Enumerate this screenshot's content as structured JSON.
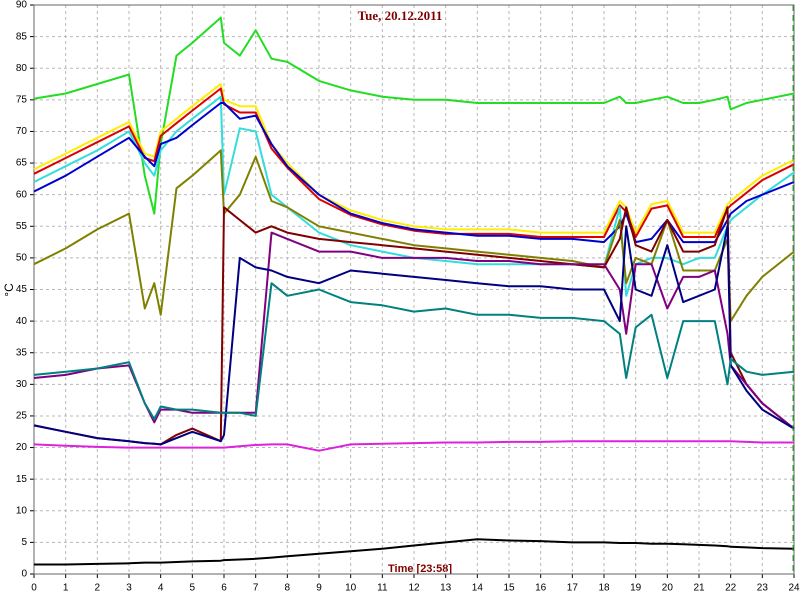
{
  "chart_data": {
    "type": "line",
    "title": "Tue, 20.12.2011",
    "x_label": "Time [23:58]",
    "y_label": "°C",
    "xlim": [
      0,
      24
    ],
    "ylim": [
      0,
      90
    ],
    "xticks": [
      0,
      1,
      2,
      3,
      4,
      5,
      6,
      7,
      8,
      9,
      10,
      11,
      12,
      13,
      14,
      15,
      16,
      17,
      18,
      19,
      20,
      21,
      22,
      23,
      24
    ],
    "yticks": [
      0,
      5,
      10,
      15,
      20,
      25,
      30,
      35,
      40,
      45,
      50,
      55,
      60,
      65,
      70,
      75,
      80,
      85,
      90
    ],
    "grid": true,
    "x": [
      0,
      1,
      2,
      3,
      3.5,
      3.8,
      4,
      4.5,
      5,
      5.9,
      6,
      6.5,
      7,
      7.5,
      8,
      9,
      10,
      11,
      12,
      13,
      14,
      15,
      16,
      17,
      18,
      18.5,
      18.7,
      19,
      19.5,
      20,
      20.5,
      21,
      21.5,
      21.9,
      22,
      22.5,
      23,
      24
    ],
    "series": [
      {
        "color": "#22dd22",
        "values": [
          75.2,
          76,
          77.5,
          79,
          63,
          57,
          68,
          82,
          84,
          88,
          84,
          82,
          86,
          81.5,
          81,
          78,
          76.5,
          75.5,
          75,
          75,
          74.5,
          74.5,
          74.5,
          74.5,
          74.5,
          75.5,
          74.5,
          74.5,
          75,
          75.5,
          74.5,
          74.5,
          75,
          75.5,
          73.5,
          74.5,
          75,
          76
        ]
      },
      {
        "color": "#ffee00",
        "values": [
          64,
          66.5,
          69,
          71.5,
          66.5,
          66,
          70,
          72,
          74,
          77.5,
          75,
          74,
          74,
          68,
          65,
          60,
          57.5,
          56,
          55,
          54.5,
          54.5,
          54.5,
          54,
          54,
          54,
          59,
          58,
          54,
          58.5,
          59,
          54,
          54,
          54,
          58.5,
          59,
          61,
          63,
          65.5
        ]
      },
      {
        "color": "#dd0000",
        "values": [
          63.3,
          65.8,
          68.3,
          70.8,
          65.8,
          65.3,
          69.3,
          71.3,
          73.3,
          76.8,
          74.3,
          73,
          73,
          67.3,
          64.3,
          59.3,
          56.8,
          55.3,
          54.3,
          53.8,
          53.8,
          53.8,
          53.3,
          53.3,
          53.3,
          58.3,
          57.3,
          53.3,
          57.8,
          58.3,
          53.3,
          53.3,
          53.3,
          57.8,
          58.3,
          60.3,
          62.3,
          64.8
        ]
      },
      {
        "color": "#33dddd",
        "values": [
          62,
          64.5,
          67,
          70,
          65,
          63,
          67,
          70,
          72,
          75.5,
          60,
          70.5,
          70,
          60,
          58,
          54,
          52,
          51,
          50,
          49.5,
          49,
          49,
          49,
          49,
          48.5,
          58,
          44,
          49,
          50,
          50,
          49,
          50,
          50,
          55,
          56,
          58,
          60,
          63.5
        ]
      },
      {
        "color": "#0000cc",
        "values": [
          60.5,
          63,
          66,
          69,
          66,
          64.5,
          68,
          69,
          71,
          74.5,
          74.5,
          72,
          72.5,
          68,
          64.5,
          60,
          57,
          55.5,
          54.5,
          54,
          53.5,
          53.5,
          53,
          53,
          52.5,
          55,
          57,
          52.5,
          53,
          56,
          52.5,
          52.5,
          52.5,
          56,
          57,
          59,
          60,
          62
        ]
      },
      {
        "color": "#808000",
        "values": [
          49,
          51.5,
          54.5,
          57,
          42,
          46,
          41,
          61,
          63,
          67,
          57,
          60,
          66,
          59,
          58,
          55,
          54,
          53,
          52,
          51.5,
          51,
          50.5,
          50,
          49.5,
          48.5,
          56,
          46,
          50,
          49,
          56,
          48,
          48,
          48,
          53,
          40,
          44,
          47,
          51
        ]
      },
      {
        "color": "#800000",
        "values": [
          23.5,
          22.5,
          21.5,
          21,
          20.7,
          20.6,
          20.5,
          22,
          23,
          21,
          58,
          56,
          54,
          55,
          54,
          53,
          52.5,
          52,
          51.5,
          51,
          50.5,
          50,
          49.5,
          49,
          48.5,
          53,
          58,
          52,
          51,
          56,
          51,
          51,
          52,
          58,
          35,
          30,
          27,
          23
        ]
      },
      {
        "color": "#800080",
        "values": [
          31,
          31.5,
          32.5,
          33,
          27,
          24,
          26,
          26,
          25.5,
          25.5,
          25.5,
          25.5,
          25.5,
          54,
          53,
          51,
          51,
          50,
          50,
          50,
          49.5,
          49.5,
          49,
          49,
          49,
          45,
          38,
          49,
          49,
          42,
          47,
          47,
          48,
          38,
          33,
          30,
          27,
          23
        ]
      },
      {
        "color": "#000080",
        "values": [
          23.5,
          22.5,
          21.5,
          21,
          20.7,
          20.6,
          20.5,
          21.5,
          22.5,
          21,
          22,
          50,
          48.5,
          48,
          47,
          46,
          48,
          47.5,
          47,
          46.5,
          46,
          45.5,
          45.5,
          45,
          45,
          40,
          55,
          45,
          44,
          52,
          43,
          44,
          45,
          55,
          33,
          29,
          26,
          23
        ]
      },
      {
        "color": "#008080",
        "values": [
          31.5,
          32,
          32.5,
          33.5,
          27,
          24.5,
          26.5,
          26,
          26,
          25.5,
          25.5,
          25.5,
          25,
          46,
          44,
          45,
          43,
          42.5,
          41.5,
          42,
          41,
          41,
          40.5,
          40.5,
          40,
          38,
          31,
          39,
          41,
          31,
          40,
          40,
          40,
          30,
          34,
          32,
          31.5,
          32
        ]
      },
      {
        "color": "#dd22dd",
        "values": [
          20.5,
          20.3,
          20.1,
          20,
          20,
          20,
          20,
          20,
          20,
          20,
          20,
          20.2,
          20.4,
          20.5,
          20.5,
          19.5,
          20.5,
          20.6,
          20.7,
          20.8,
          20.8,
          20.9,
          20.9,
          21,
          21,
          21,
          21,
          21,
          21,
          21,
          21,
          21,
          21,
          21,
          21,
          20.9,
          20.8,
          20.8
        ]
      },
      {
        "color": "#000000",
        "values": [
          1.5,
          1.5,
          1.6,
          1.7,
          1.8,
          1.8,
          1.8,
          1.9,
          2,
          2.1,
          2.2,
          2.3,
          2.4,
          2.6,
          2.8,
          3.2,
          3.6,
          4,
          4.5,
          5,
          5.5,
          5.3,
          5.2,
          5,
          5,
          4.9,
          4.9,
          4.9,
          4.8,
          4.8,
          4.7,
          4.6,
          4.5,
          4.4,
          4.3,
          4.2,
          4.1,
          4
        ]
      }
    ]
  }
}
